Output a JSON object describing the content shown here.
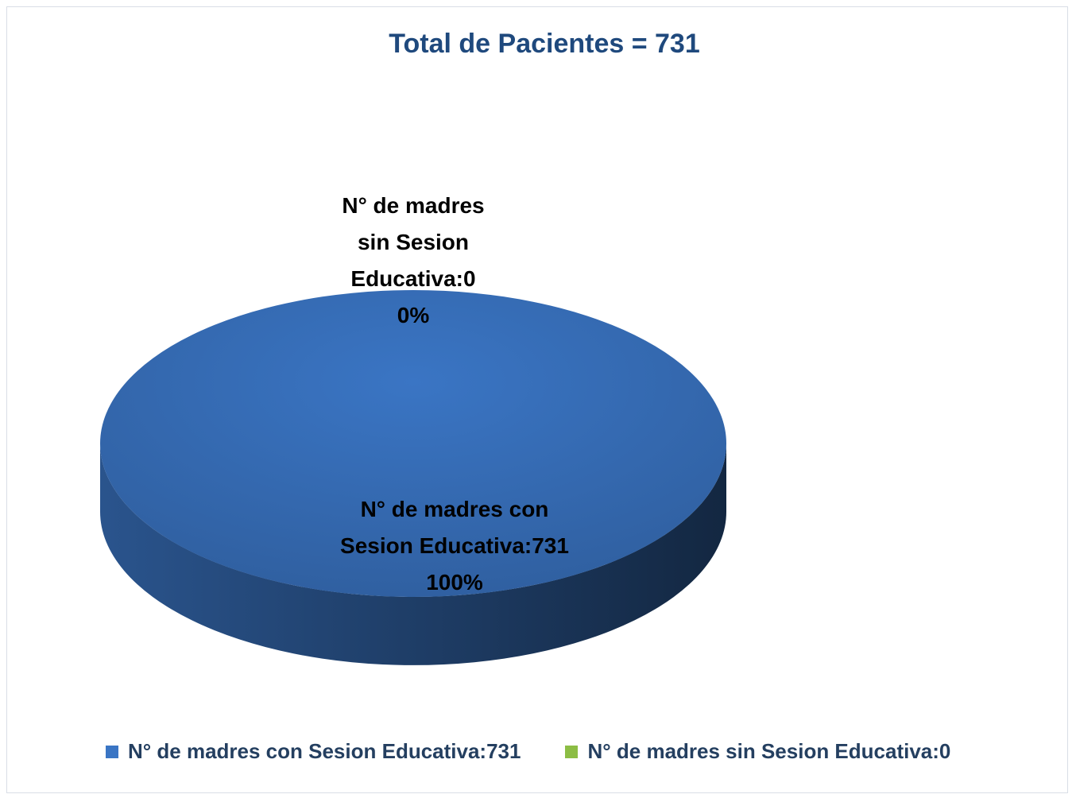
{
  "chart_data": {
    "type": "pie",
    "title": "Total de Pacientes = 731",
    "categories": [
      "N° de madres con Sesion Educativa:731",
      "N° de madres sin Sesion Educativa:0"
    ],
    "values": [
      100,
      0
    ],
    "value_labels": [
      "100%",
      "0%"
    ],
    "colors": [
      "#3a75c4",
      "#8cbd44"
    ],
    "legend": "bottom"
  }
}
